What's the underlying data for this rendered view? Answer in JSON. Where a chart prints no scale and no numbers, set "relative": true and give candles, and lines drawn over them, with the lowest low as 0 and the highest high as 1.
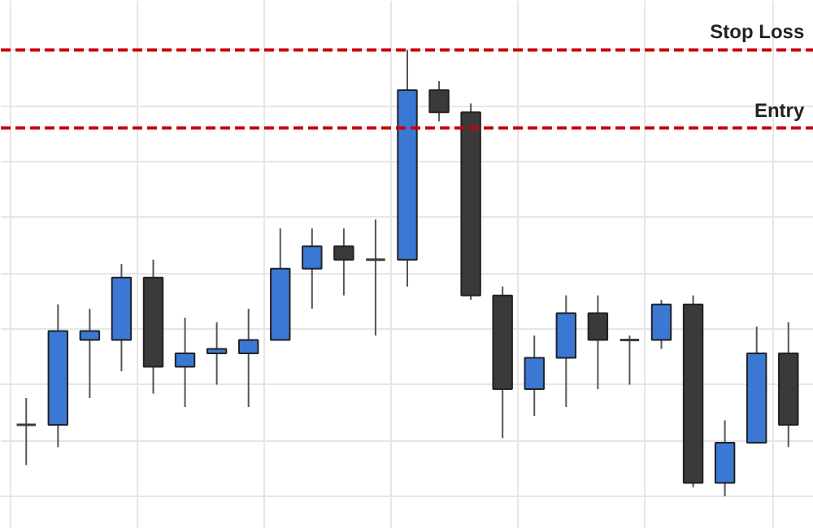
{
  "chart_data": {
    "type": "candlestick",
    "relative": true,
    "grid": true,
    "tick_labels": false,
    "categories": [
      null,
      null,
      null,
      null,
      null,
      null,
      null,
      null,
      null,
      null,
      null,
      null,
      null,
      null,
      null,
      null,
      null,
      null,
      null,
      null,
      null,
      null,
      null,
      null,
      null
    ],
    "ohlc": [
      [
        0.16,
        0.22,
        0.07,
        0.16
      ],
      [
        0.16,
        0.43,
        0.11,
        0.37
      ],
      [
        0.35,
        0.42,
        0.22,
        0.37
      ],
      [
        0.35,
        0.52,
        0.28,
        0.49
      ],
      [
        0.49,
        0.53,
        0.23,
        0.29
      ],
      [
        0.29,
        0.4,
        0.2,
        0.32
      ],
      [
        0.32,
        0.39,
        0.25,
        0.33
      ],
      [
        0.32,
        0.42,
        0.2,
        0.35
      ],
      [
        0.35,
        0.6,
        0.35,
        0.51
      ],
      [
        0.51,
        0.6,
        0.42,
        0.56
      ],
      [
        0.56,
        0.6,
        0.45,
        0.53
      ],
      [
        0.53,
        0.62,
        0.36,
        0.53
      ],
      [
        0.53,
        1.0,
        0.47,
        0.91
      ],
      [
        0.91,
        0.93,
        0.84,
        0.86
      ],
      [
        0.86,
        0.88,
        0.44,
        0.45
      ],
      [
        0.45,
        0.47,
        0.13,
        0.24
      ],
      [
        0.24,
        0.36,
        0.18,
        0.31
      ],
      [
        0.31,
        0.45,
        0.2,
        0.41
      ],
      [
        0.41,
        0.45,
        0.24,
        0.35
      ],
      [
        0.35,
        0.36,
        0.25,
        0.35
      ],
      [
        0.35,
        0.44,
        0.33,
        0.43
      ],
      [
        0.43,
        0.45,
        0.02,
        0.03
      ],
      [
        0.03,
        0.17,
        0.0,
        0.12
      ],
      [
        0.12,
        0.38,
        0.12,
        0.32
      ],
      [
        0.32,
        0.39,
        0.11,
        0.16
      ]
    ],
    "colors": [
      "#3a3a3a",
      "#3a78d4",
      "#3a78d4",
      "#3a78d4",
      "#3a3a3a",
      "#3a78d4",
      "#3a78d4",
      "#3a78d4",
      "#3a78d4",
      "#3a78d4",
      "#3a3a3a",
      "#3a3a3a",
      "#3a78d4",
      "#3a3a3a",
      "#3a3a3a",
      "#3a3a3a",
      "#3a78d4",
      "#3a78d4",
      "#3a3a3a",
      "#3a3a3a",
      "#3a78d4",
      "#3a3a3a",
      "#3a78d4",
      "#3a78d4",
      "#3a3a3a"
    ],
    "ref_lines": [
      {
        "axis": "y",
        "value": 1.0,
        "label": "Stop Loss",
        "color": "#cc0000",
        "line_style": "dashed"
      },
      {
        "axis": "y",
        "value": 0.825,
        "label": "Entry",
        "color": "#cc0000",
        "line_style": "dashed"
      }
    ]
  }
}
